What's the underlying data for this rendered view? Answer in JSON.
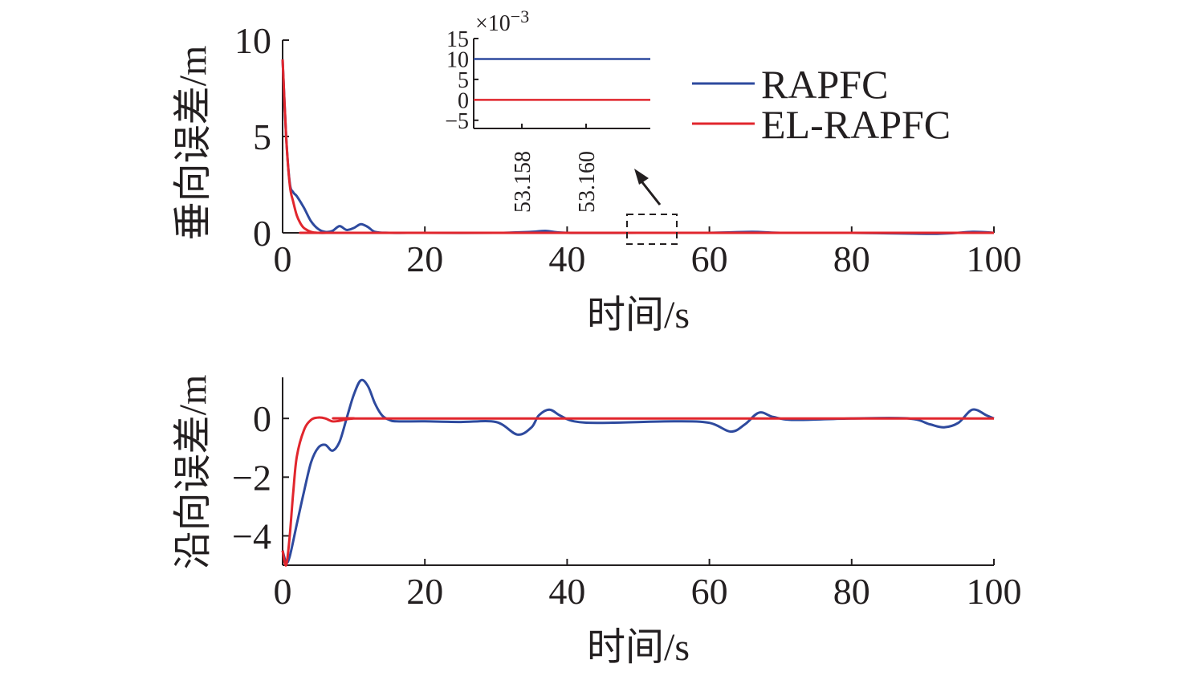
{
  "colors": {
    "RAPFC": "#2e4a9e",
    "EL-RAPFC": "#e1262d",
    "axis": "#231f20"
  },
  "legend": [
    {
      "name": "RAPFC",
      "color": "#2e4a9e"
    },
    {
      "name": "EL-RAPFC",
      "color": "#e1262d"
    }
  ],
  "chart_data": [
    {
      "type": "line",
      "ylabel": "垂向误差/m",
      "xlabel": "时间/s",
      "xlim": [
        0,
        100
      ],
      "ylim": [
        0,
        10
      ],
      "xticks": [
        "0",
        "20",
        "40",
        "60",
        "80",
        "100"
      ],
      "yticks": [
        "0",
        "5",
        "10"
      ],
      "xtick_values": [
        0,
        20,
        40,
        60,
        80,
        100
      ],
      "ytick_values": [
        0,
        5,
        10
      ],
      "series": [
        {
          "name": "RAPFC",
          "color": "#2e4a9e",
          "x": [
            0,
            0.5,
            1,
            1.5,
            2,
            3,
            4,
            5,
            6,
            7,
            8,
            9,
            10,
            11,
            12,
            13,
            15,
            20,
            30,
            35,
            37,
            40,
            50,
            60,
            66,
            70,
            80,
            92,
            97,
            100
          ],
          "y": [
            9,
            5,
            2.6,
            2.1,
            1.9,
            1.3,
            0.6,
            0.2,
            0.05,
            0.1,
            0.35,
            0.15,
            0.25,
            0.45,
            0.3,
            0.05,
            0,
            0,
            0,
            0.05,
            0.1,
            0,
            0,
            0,
            0.05,
            0,
            0,
            -0.05,
            0.05,
            0
          ]
        },
        {
          "name": "EL-RAPFC",
          "color": "#e1262d",
          "x": [
            0,
            0.5,
            1,
            1.5,
            2,
            2.5,
            3,
            4,
            5,
            7,
            10,
            100
          ],
          "y": [
            9,
            5,
            2.5,
            1.6,
            0.9,
            0.5,
            0.25,
            0.05,
            0,
            0,
            0,
            0
          ]
        }
      ]
    },
    {
      "type": "line",
      "title": "inset",
      "multiplier": "×10",
      "multiplier_exp": "−3",
      "ylim": [
        -7,
        15
      ],
      "xlim": [
        53.1565,
        53.162
      ],
      "yticks": [
        "15",
        "10",
        "5",
        "0",
        "−5"
      ],
      "ytick_values": [
        15,
        10,
        5,
        0,
        -5
      ],
      "xticks": [
        "53.158",
        "53.160"
      ],
      "xtick_values": [
        53.158,
        53.16
      ],
      "series": [
        {
          "name": "RAPFC",
          "color": "#2e4a9e",
          "x": [
            53.1565,
            53.162
          ],
          "y": [
            10,
            10
          ]
        },
        {
          "name": "EL-RAPFC",
          "color": "#e1262d",
          "x": [
            53.1565,
            53.162
          ],
          "y": [
            0,
            0
          ]
        }
      ]
    },
    {
      "type": "line",
      "ylabel": "沿向误差/m",
      "xlabel": "时间/s",
      "xlim": [
        0,
        100
      ],
      "ylim": [
        -5,
        1.4
      ],
      "xticks": [
        "0",
        "20",
        "40",
        "60",
        "80",
        "100"
      ],
      "yticks": [
        "0",
        "−2",
        "−4"
      ],
      "xtick_values": [
        0,
        20,
        40,
        60,
        80,
        100
      ],
      "ytick_values": [
        0,
        -2,
        -4
      ],
      "series": [
        {
          "name": "RAPFC",
          "color": "#2e4a9e",
          "x": [
            0,
            0.5,
            1,
            2,
            3,
            4,
            5,
            6,
            7,
            8,
            9,
            10,
            11,
            12,
            13,
            14,
            15,
            16,
            20,
            25,
            30,
            33,
            35,
            36,
            37.5,
            39,
            41,
            45,
            55,
            60,
            63,
            65,
            67,
            69,
            72,
            80,
            88,
            91,
            93,
            95,
            97,
            99,
            100
          ],
          "y": [
            -4.5,
            -4.9,
            -4.7,
            -3.6,
            -2.5,
            -1.5,
            -1.0,
            -0.9,
            -1.1,
            -0.8,
            0.0,
            0.8,
            1.3,
            1.1,
            0.5,
            0.1,
            -0.05,
            -0.1,
            -0.1,
            -0.12,
            -0.12,
            -0.55,
            -0.3,
            0.1,
            0.3,
            0.1,
            -0.1,
            -0.15,
            -0.1,
            -0.15,
            -0.45,
            -0.2,
            0.2,
            0.05,
            -0.05,
            0,
            0,
            -0.2,
            -0.3,
            -0.15,
            0.3,
            0.1,
            0
          ]
        },
        {
          "name": "EL-RAPFC",
          "color": "#e1262d",
          "x": [
            0,
            0.5,
            1,
            1.5,
            2,
            3,
            4,
            5,
            6,
            7,
            8,
            10,
            15,
            100
          ],
          "y": [
            -4.5,
            -5.0,
            -4.0,
            -2.5,
            -1.3,
            -0.4,
            -0.05,
            0.03,
            0.0,
            -0.1,
            -0.08,
            0,
            0,
            0
          ]
        }
      ]
    }
  ],
  "inset_arrow": true
}
